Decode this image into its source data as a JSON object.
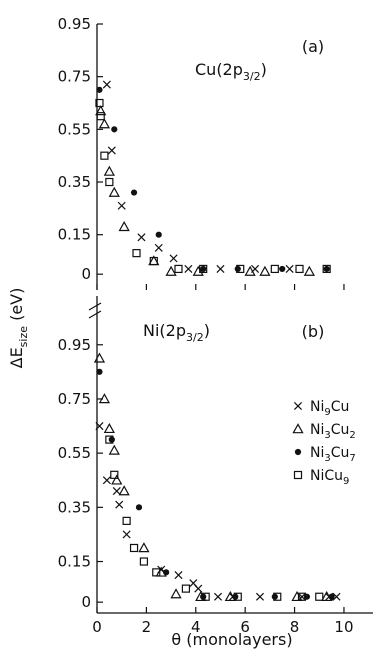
{
  "chart_data": [
    {
      "type": "scatter",
      "panel": "(a)",
      "title_main": "Cu(2p",
      "title_sub": "3/2",
      "title_close": ")",
      "ylabel_main": "ΔE",
      "ylabel_sub": "size",
      "ylabel_unit": " (eV)",
      "xlim": [
        0,
        11.5
      ],
      "ylim": [
        -0.06,
        0.95
      ],
      "yticks": [
        0,
        0.15,
        0.35,
        0.55,
        0.75,
        0.95
      ],
      "ytick_labels": [
        "0",
        "0.15",
        "0.35",
        "0.55",
        "0.75",
        "0.95"
      ],
      "xticks": [
        0,
        2,
        4,
        6,
        8,
        10
      ],
      "grid": false,
      "series": [
        {
          "name": "Ni9Cu",
          "marker": "x",
          "x": [
            0.4,
            0.6,
            1.0,
            1.8,
            2.5,
            3.1,
            3.7,
            5.0,
            6.4,
            7.8
          ],
          "y": [
            0.72,
            0.47,
            0.26,
            0.14,
            0.1,
            0.06,
            0.02,
            0.02,
            0.02,
            0.02
          ]
        },
        {
          "name": "Ni3Cu2",
          "marker": "triangle",
          "x": [
            0.15,
            0.3,
            0.5,
            0.7,
            1.1,
            2.3,
            3.0,
            4.1,
            6.2,
            6.8,
            8.6
          ],
          "y": [
            0.62,
            0.57,
            0.39,
            0.31,
            0.18,
            0.05,
            0.01,
            0.01,
            0.01,
            0.01,
            0.01
          ]
        },
        {
          "name": "Ni3Cu7",
          "marker": "dot",
          "x": [
            0.1,
            0.7,
            1.5,
            2.5,
            4.3,
            5.7,
            7.5,
            9.3
          ],
          "y": [
            0.7,
            0.55,
            0.31,
            0.15,
            0.02,
            0.02,
            0.02,
            0.02
          ]
        },
        {
          "name": "NiCu9",
          "marker": "square",
          "x": [
            0.1,
            0.15,
            0.3,
            0.5,
            1.6,
            2.3,
            3.3,
            4.3,
            5.8,
            7.2,
            8.2,
            9.3
          ],
          "y": [
            0.65,
            0.6,
            0.45,
            0.35,
            0.08,
            0.05,
            0.02,
            0.02,
            0.02,
            0.02,
            0.02,
            0.02
          ]
        }
      ]
    },
    {
      "type": "scatter",
      "panel": "(b)",
      "title_main": "Ni(2p",
      "title_sub": "3/2",
      "title_close": ")",
      "xlabel": "θ (monolayers)",
      "xlim": [
        0,
        11.5
      ],
      "ylim": [
        -0.04,
        1.13
      ],
      "yticks": [
        0,
        0.15,
        0.35,
        0.55,
        0.75,
        0.95
      ],
      "ytick_labels": [
        "0",
        "0.15",
        "0.35",
        "0.55",
        "0.75",
        "0.95"
      ],
      "xticks": [
        0,
        2,
        4,
        6,
        8,
        10
      ],
      "xtick_labels": [
        "0",
        "2",
        "4",
        "6",
        "8",
        "10"
      ],
      "grid": false,
      "legend_position": "right",
      "series": [
        {
          "name": "Ni9Cu",
          "marker": "x",
          "x": [
            0.1,
            0.4,
            0.8,
            0.9,
            1.2,
            2.6,
            3.3,
            3.9,
            4.1,
            4.9,
            5.5,
            6.6,
            8.3,
            9.4,
            9.7
          ],
          "y": [
            0.65,
            0.45,
            0.41,
            0.36,
            0.25,
            0.12,
            0.1,
            0.07,
            0.05,
            0.02,
            0.02,
            0.02,
            0.02,
            0.02,
            0.02
          ]
        },
        {
          "name": "Ni3Cu2",
          "marker": "triangle",
          "x": [
            0.1,
            0.3,
            0.5,
            0.7,
            0.8,
            1.1,
            1.9,
            2.6,
            3.2,
            4.2,
            5.4,
            8.1,
            9.3
          ],
          "y": [
            0.9,
            0.75,
            0.64,
            0.56,
            0.45,
            0.41,
            0.2,
            0.11,
            0.03,
            0.02,
            0.02,
            0.02,
            0.02
          ]
        },
        {
          "name": "Ni3Cu7",
          "marker": "dot",
          "x": [
            0.1,
            0.6,
            1.7,
            2.8,
            4.3,
            5.6,
            7.2,
            8.5,
            9.5
          ],
          "y": [
            0.85,
            0.6,
            0.35,
            0.11,
            0.02,
            0.02,
            0.02,
            0.02,
            0.02
          ]
        },
        {
          "name": "NiCu9",
          "marker": "square",
          "x": [
            0.5,
            0.7,
            1.2,
            1.5,
            1.9,
            2.4,
            3.6,
            4.4,
            5.7,
            7.3,
            8.3,
            9.0
          ],
          "y": [
            0.6,
            0.47,
            0.3,
            0.2,
            0.15,
            0.11,
            0.05,
            0.02,
            0.02,
            0.02,
            0.02,
            0.02
          ]
        }
      ]
    }
  ],
  "legend": [
    {
      "marker": "x",
      "base": "Ni",
      "sub1": "9",
      "mid": "Cu",
      "sub2": ""
    },
    {
      "marker": "triangle",
      "base": "Ni",
      "sub1": "3",
      "mid": "Cu",
      "sub2": "2"
    },
    {
      "marker": "dot",
      "base": "Ni",
      "sub1": "3",
      "mid": "Cu",
      "sub2": "7"
    },
    {
      "marker": "square",
      "base": "Ni",
      "sub1": "",
      "mid": "Cu",
      "sub2": "9"
    }
  ]
}
